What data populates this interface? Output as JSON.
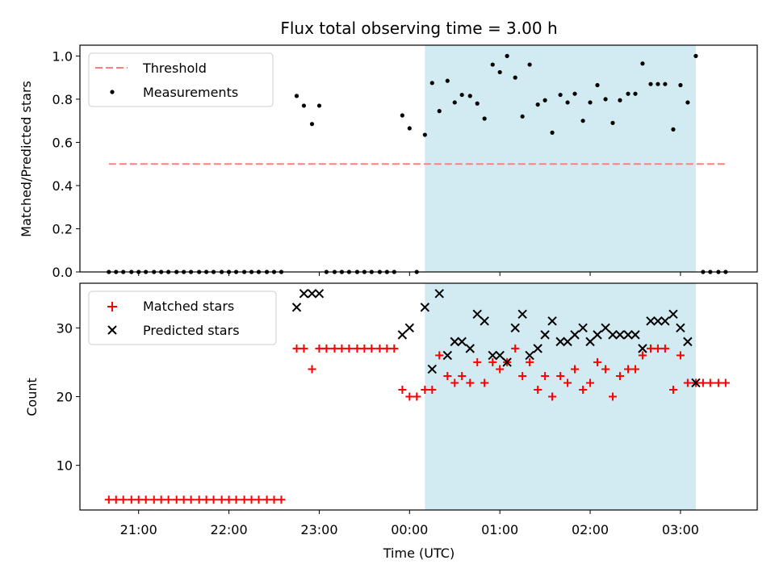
{
  "chart_data": [
    {
      "type": "scatter",
      "title": "Flux total observing time = 3.00 h",
      "xlabel": "",
      "ylabel": "Matched/Predicted stars",
      "ylim": [
        0,
        1.05
      ],
      "yticks": [
        "0.0",
        "0.2",
        "0.4",
        "0.6",
        "0.8",
        "1.0"
      ],
      "x_unit": "hours since 00:00 UTC",
      "shaded_span": [
        0.17,
        3.17
      ],
      "shade_color": "#add8e6",
      "threshold": {
        "name": "Threshold",
        "value": 0.5,
        "x_range": [
          -3.33,
          3.5
        ],
        "color": "#ff7f7f",
        "style": "dashed"
      },
      "series": [
        {
          "name": "Measurements",
          "color": "#000000",
          "marker": "dot",
          "points": [
            [
              -3.33,
              0
            ],
            [
              -3.25,
              0
            ],
            [
              -3.17,
              0
            ],
            [
              -3.08,
              0
            ],
            [
              -3.0,
              0
            ],
            [
              -2.92,
              0
            ],
            [
              -2.83,
              0
            ],
            [
              -2.75,
              0
            ],
            [
              -2.67,
              0
            ],
            [
              -2.58,
              0
            ],
            [
              -2.5,
              0
            ],
            [
              -2.42,
              0
            ],
            [
              -2.33,
              0
            ],
            [
              -2.25,
              0
            ],
            [
              -2.17,
              0
            ],
            [
              -2.08,
              0
            ],
            [
              -2.0,
              0
            ],
            [
              -1.92,
              0
            ],
            [
              -1.83,
              0
            ],
            [
              -1.75,
              0
            ],
            [
              -1.67,
              0
            ],
            [
              -1.58,
              0
            ],
            [
              -1.5,
              0
            ],
            [
              -1.42,
              0
            ],
            [
              -1.25,
              0.815
            ],
            [
              -1.17,
              0.77
            ],
            [
              -1.08,
              0.685
            ],
            [
              -1.0,
              0.77
            ],
            [
              -0.92,
              0
            ],
            [
              -0.83,
              0
            ],
            [
              -0.75,
              0
            ],
            [
              -0.67,
              0
            ],
            [
              -0.58,
              0
            ],
            [
              -0.5,
              0
            ],
            [
              -0.42,
              0
            ],
            [
              -0.33,
              0
            ],
            [
              -0.25,
              0
            ],
            [
              -0.17,
              0
            ],
            [
              -0.08,
              0.725
            ],
            [
              0.0,
              0.665
            ],
            [
              0.08,
              0
            ],
            [
              0.17,
              0.635
            ],
            [
              0.25,
              0.875
            ],
            [
              0.33,
              0.745
            ],
            [
              0.42,
              0.885
            ],
            [
              0.5,
              0.785
            ],
            [
              0.58,
              0.82
            ],
            [
              0.67,
              0.815
            ],
            [
              0.75,
              0.78
            ],
            [
              0.83,
              0.71
            ],
            [
              0.92,
              0.96
            ],
            [
              1.0,
              0.925
            ],
            [
              1.08,
              1.0
            ],
            [
              1.17,
              0.9
            ],
            [
              1.25,
              0.72
            ],
            [
              1.33,
              0.96
            ],
            [
              1.42,
              0.775
            ],
            [
              1.5,
              0.795
            ],
            [
              1.58,
              0.645
            ],
            [
              1.67,
              0.82
            ],
            [
              1.75,
              0.785
            ],
            [
              1.83,
              0.825
            ],
            [
              1.92,
              0.7
            ],
            [
              2.0,
              0.785
            ],
            [
              2.08,
              0.865
            ],
            [
              2.17,
              0.8
            ],
            [
              2.25,
              0.69
            ],
            [
              2.33,
              0.795
            ],
            [
              2.42,
              0.825
            ],
            [
              2.5,
              0.825
            ],
            [
              2.58,
              0.965
            ],
            [
              2.67,
              0.87
            ],
            [
              2.75,
              0.87
            ],
            [
              2.83,
              0.87
            ],
            [
              2.92,
              0.66
            ],
            [
              3.0,
              0.865
            ],
            [
              3.08,
              0.785
            ],
            [
              3.17,
              1.0
            ],
            [
              3.25,
              0
            ],
            [
              3.33,
              0
            ],
            [
              3.42,
              0
            ],
            [
              3.5,
              0
            ]
          ]
        }
      ],
      "legend": {
        "position": "upper-left",
        "entries": [
          "Threshold",
          "Measurements"
        ]
      }
    },
    {
      "type": "scatter",
      "title": "",
      "xlabel": "Time (UTC)",
      "ylabel": "Count",
      "ylim": [
        3.5,
        36.5
      ],
      "yticks": [
        "10",
        "20",
        "30"
      ],
      "xlim": [
        -3.65,
        3.85
      ],
      "xticks": [
        {
          "value": -3,
          "label": "21:00"
        },
        {
          "value": -2,
          "label": "22:00"
        },
        {
          "value": -1,
          "label": "23:00"
        },
        {
          "value": 0,
          "label": "00:00"
        },
        {
          "value": 1,
          "label": "01:00"
        },
        {
          "value": 2,
          "label": "02:00"
        },
        {
          "value": 3,
          "label": "03:00"
        }
      ],
      "shaded_span": [
        0.17,
        3.17
      ],
      "series": [
        {
          "name": "Matched stars",
          "color": "#ff0000",
          "marker": "plus",
          "points": [
            [
              -3.33,
              5
            ],
            [
              -3.25,
              5
            ],
            [
              -3.17,
              5
            ],
            [
              -3.08,
              5
            ],
            [
              -3.0,
              5
            ],
            [
              -2.92,
              5
            ],
            [
              -2.83,
              5
            ],
            [
              -2.75,
              5
            ],
            [
              -2.67,
              5
            ],
            [
              -2.58,
              5
            ],
            [
              -2.5,
              5
            ],
            [
              -2.42,
              5
            ],
            [
              -2.33,
              5
            ],
            [
              -2.25,
              5
            ],
            [
              -2.17,
              5
            ],
            [
              -2.08,
              5
            ],
            [
              -2.0,
              5
            ],
            [
              -1.92,
              5
            ],
            [
              -1.83,
              5
            ],
            [
              -1.75,
              5
            ],
            [
              -1.67,
              5
            ],
            [
              -1.58,
              5
            ],
            [
              -1.5,
              5
            ],
            [
              -1.42,
              5
            ],
            [
              -1.25,
              27
            ],
            [
              -1.17,
              27
            ],
            [
              -1.08,
              24
            ],
            [
              -1.0,
              27
            ],
            [
              -0.92,
              27
            ],
            [
              -0.83,
              27
            ],
            [
              -0.75,
              27
            ],
            [
              -0.67,
              27
            ],
            [
              -0.58,
              27
            ],
            [
              -0.5,
              27
            ],
            [
              -0.42,
              27
            ],
            [
              -0.33,
              27
            ],
            [
              -0.25,
              27
            ],
            [
              -0.17,
              27
            ],
            [
              -0.08,
              21
            ],
            [
              0.0,
              20
            ],
            [
              0.08,
              20
            ],
            [
              0.17,
              21
            ],
            [
              0.25,
              21
            ],
            [
              0.33,
              26
            ],
            [
              0.42,
              23
            ],
            [
              0.5,
              22
            ],
            [
              0.58,
              23
            ],
            [
              0.67,
              22
            ],
            [
              0.75,
              25
            ],
            [
              0.83,
              22
            ],
            [
              0.92,
              25
            ],
            [
              1.0,
              24
            ],
            [
              1.08,
              25
            ],
            [
              1.17,
              27
            ],
            [
              1.25,
              23
            ],
            [
              1.33,
              25
            ],
            [
              1.42,
              21
            ],
            [
              1.5,
              23
            ],
            [
              1.58,
              20
            ],
            [
              1.67,
              23
            ],
            [
              1.75,
              22
            ],
            [
              1.83,
              24
            ],
            [
              1.92,
              21
            ],
            [
              2.0,
              22
            ],
            [
              2.08,
              25
            ],
            [
              2.17,
              24
            ],
            [
              2.25,
              20
            ],
            [
              2.33,
              23
            ],
            [
              2.42,
              24
            ],
            [
              2.5,
              24
            ],
            [
              2.58,
              26
            ],
            [
              2.67,
              27
            ],
            [
              2.75,
              27
            ],
            [
              2.83,
              27
            ],
            [
              2.92,
              21
            ],
            [
              3.0,
              26
            ],
            [
              3.08,
              22
            ],
            [
              3.17,
              22
            ],
            [
              3.25,
              22
            ],
            [
              3.33,
              22
            ],
            [
              3.42,
              22
            ],
            [
              3.5,
              22
            ]
          ]
        },
        {
          "name": "Predicted stars",
          "color": "#000000",
          "marker": "x",
          "points": [
            [
              -1.25,
              33
            ],
            [
              -1.17,
              35
            ],
            [
              -1.08,
              35
            ],
            [
              -1.0,
              35
            ],
            [
              -0.08,
              29
            ],
            [
              0.0,
              30
            ],
            [
              0.17,
              33
            ],
            [
              0.25,
              24
            ],
            [
              0.33,
              35
            ],
            [
              0.42,
              26
            ],
            [
              0.5,
              28
            ],
            [
              0.58,
              28
            ],
            [
              0.67,
              27
            ],
            [
              0.75,
              32
            ],
            [
              0.83,
              31
            ],
            [
              0.92,
              26
            ],
            [
              1.0,
              26
            ],
            [
              1.08,
              25
            ],
            [
              1.17,
              30
            ],
            [
              1.25,
              32
            ],
            [
              1.33,
              26
            ],
            [
              1.42,
              27
            ],
            [
              1.5,
              29
            ],
            [
              1.58,
              31
            ],
            [
              1.67,
              28
            ],
            [
              1.75,
              28
            ],
            [
              1.83,
              29
            ],
            [
              1.92,
              30
            ],
            [
              2.0,
              28
            ],
            [
              2.08,
              29
            ],
            [
              2.17,
              30
            ],
            [
              2.25,
              29
            ],
            [
              2.33,
              29
            ],
            [
              2.42,
              29
            ],
            [
              2.5,
              29
            ],
            [
              2.58,
              27
            ],
            [
              2.67,
              31
            ],
            [
              2.75,
              31
            ],
            [
              2.83,
              31
            ],
            [
              2.92,
              32
            ],
            [
              3.0,
              30
            ],
            [
              3.08,
              28
            ],
            [
              3.17,
              22
            ]
          ]
        }
      ],
      "legend": {
        "position": "upper-left",
        "entries": [
          "Matched stars",
          "Predicted stars"
        ]
      }
    }
  ]
}
